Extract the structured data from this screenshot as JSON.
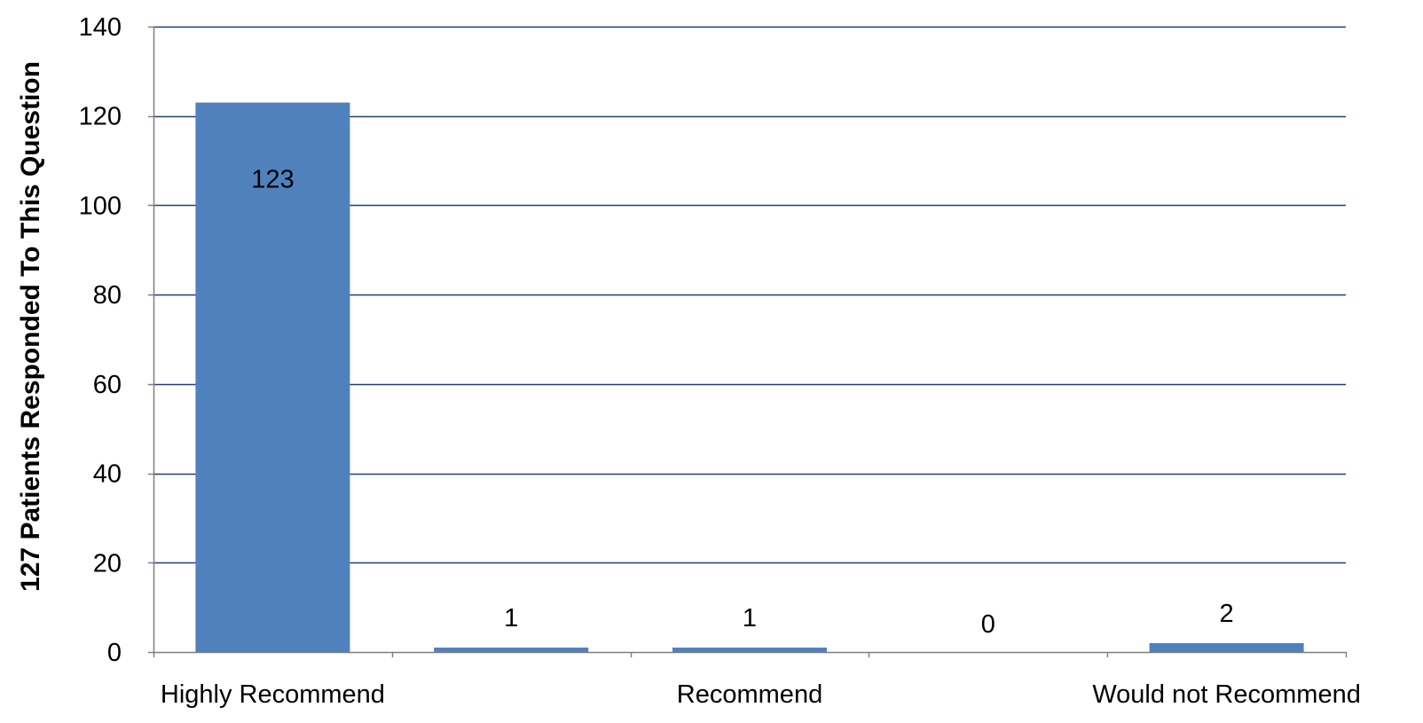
{
  "chart_data": {
    "type": "bar",
    "categories": [
      "Highly Recommend",
      "",
      "Recommend",
      "",
      "Would not Recommend"
    ],
    "values": [
      123,
      1,
      1,
      0,
      2
    ],
    "data_labels": [
      "123",
      "1",
      "1",
      "0",
      "2"
    ],
    "title": "",
    "xlabel": "",
    "ylabel": "127 Patients Responded To This Question",
    "ylim": [
      0,
      140
    ],
    "yticks": [
      0,
      20,
      40,
      60,
      80,
      100,
      120,
      140
    ],
    "ytick_labels": [
      "0",
      "20",
      "40",
      "60",
      "80",
      "100",
      "120",
      "140"
    ],
    "grid": true,
    "legend": "none",
    "colors": {
      "bar": "#4f81bd",
      "grid": "#1f3f7a",
      "axis": "#7f7f7f"
    }
  }
}
